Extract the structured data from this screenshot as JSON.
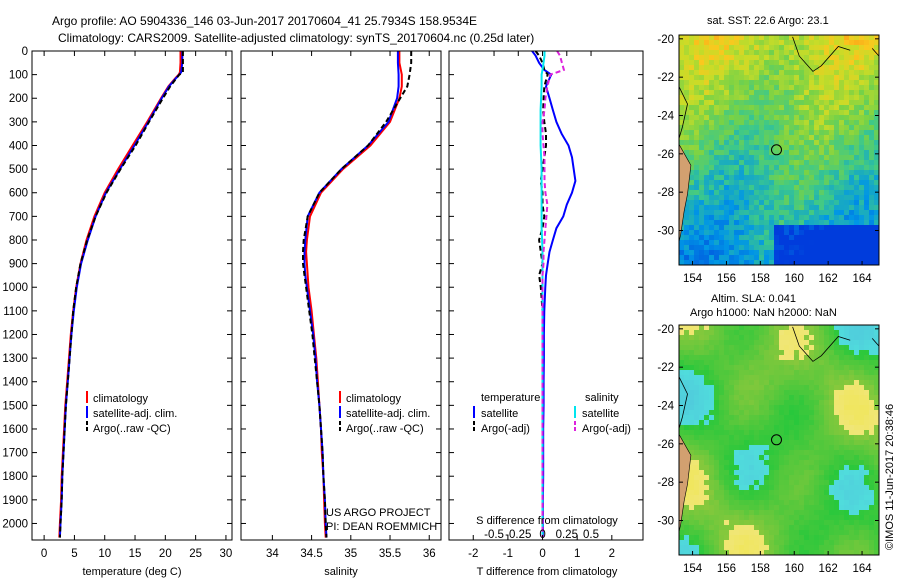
{
  "title": {
    "line1": "Argo profile: AO 5904336_146 03-Jun-2017 20170604_41 25.7934S 158.9534E",
    "line2": "Climatology: CARS2009. Satellite-adjusted climatology: synTS_20170604.nc (0.25d later)"
  },
  "colors": {
    "climatology": "#ff0000",
    "satellite": "#0000ff",
    "argo": "#000000",
    "sat_sal": "#00e5ee",
    "argo_sal": "#dd22dd"
  },
  "chart_data": [
    {
      "type": "line",
      "id": "temperature",
      "xlabel": "temperature (deg C)",
      "ylabel": "",
      "xlim": [
        -2,
        31
      ],
      "ylim": [
        2070,
        0
      ],
      "xticks": [
        0,
        5,
        10,
        15,
        20,
        25,
        30
      ],
      "yticks": [
        0,
        100,
        200,
        300,
        400,
        500,
        600,
        700,
        800,
        900,
        1000,
        1100,
        1200,
        1300,
        1400,
        1500,
        1600,
        1700,
        1800,
        1900,
        2000
      ],
      "depth": [
        0,
        20,
        50,
        90,
        100,
        120,
        150,
        200,
        300,
        400,
        500,
        600,
        700,
        800,
        900,
        1000,
        1100,
        1200,
        1300,
        1400,
        1500,
        1600,
        1700,
        1800,
        1900,
        2000,
        2060
      ],
      "series": [
        {
          "name": "climatology",
          "color": "#ff0000",
          "values": [
            22.5,
            22.5,
            22.5,
            22.4,
            22.2,
            21.5,
            20.5,
            19.3,
            17.0,
            14.6,
            12.2,
            10.0,
            8.3,
            7.0,
            6.0,
            5.3,
            4.8,
            4.4,
            4.1,
            3.8,
            3.5,
            3.3,
            3.1,
            2.9,
            2.8,
            2.6,
            2.5
          ]
        },
        {
          "name": "satellite-adj. clim.",
          "color": "#0000ff",
          "values": [
            22.8,
            22.8,
            22.8,
            22.6,
            22.3,
            21.6,
            20.6,
            19.4,
            17.2,
            14.9,
            12.5,
            10.2,
            8.5,
            7.2,
            6.1,
            5.4,
            4.9,
            4.5,
            4.2,
            3.9,
            3.6,
            3.4,
            3.2,
            3.0,
            2.9,
            2.7,
            2.6
          ]
        },
        {
          "name": "Argo(..raw -QC)",
          "color": "#000000",
          "values": [
            22.9,
            22.9,
            22.9,
            22.9,
            22.3,
            21.7,
            20.8,
            19.6,
            17.3,
            15.1,
            12.6,
            10.3,
            8.5,
            7.1,
            6.0,
            5.3,
            4.8,
            4.5,
            4.2,
            3.9,
            3.6,
            3.4,
            3.2,
            3.0,
            2.9,
            2.7,
            2.6
          ]
        }
      ],
      "legend": [
        "climatology",
        "satellite-adj. clim.",
        "Argo(..raw -QC)"
      ]
    },
    {
      "type": "line",
      "id": "salinity",
      "xlabel": "salinity",
      "ylabel": "",
      "xlim": [
        33.6,
        36.15
      ],
      "ylim": [
        2070,
        0
      ],
      "xticks": [
        34,
        34.5,
        35,
        35.5,
        36
      ],
      "depth": [
        0,
        20,
        50,
        100,
        150,
        200,
        300,
        400,
        500,
        600,
        700,
        800,
        850,
        900,
        950,
        1000,
        1100,
        1200,
        1300,
        1400,
        1500,
        1600,
        1700,
        1800,
        1900,
        2000,
        2060
      ],
      "series": [
        {
          "name": "climatology",
          "color": "#ff0000",
          "values": [
            35.62,
            35.62,
            35.62,
            35.65,
            35.65,
            35.62,
            35.5,
            35.25,
            34.9,
            34.62,
            34.48,
            34.44,
            34.43,
            34.44,
            34.45,
            34.46,
            34.5,
            34.53,
            34.56,
            34.58,
            34.6,
            34.62,
            34.63,
            34.65,
            34.66,
            34.67,
            34.68
          ]
        },
        {
          "name": "satellite-adj. clim.",
          "color": "#0000ff",
          "values": [
            35.6,
            35.6,
            35.6,
            35.61,
            35.61,
            35.59,
            35.48,
            35.22,
            34.88,
            34.6,
            34.45,
            34.42,
            34.41,
            34.41,
            34.42,
            34.44,
            34.48,
            34.52,
            34.55,
            34.57,
            34.6,
            34.62,
            34.64,
            34.65,
            34.67,
            34.68,
            34.69
          ]
        },
        {
          "name": "Argo(..raw -QC)",
          "color": "#000000",
          "values": [
            35.77,
            35.77,
            35.77,
            35.75,
            35.72,
            35.63,
            35.45,
            35.22,
            34.88,
            34.6,
            34.45,
            34.4,
            34.39,
            34.39,
            34.41,
            34.43,
            34.47,
            34.51,
            34.54,
            34.57,
            34.6,
            34.62,
            34.64,
            34.65,
            34.67,
            34.68,
            34.69
          ]
        }
      ],
      "legend": [
        "climatology",
        "satellite-adj. clim.",
        "Argo(..raw -QC)"
      ],
      "note1": "US ARGO PROJECT",
      "note2": "PI: DEAN ROEMMICH"
    },
    {
      "type": "line",
      "id": "differences",
      "xlabel": "T difference from climatology",
      "xlabel2": "S difference from climatology",
      "xlim": [
        -2.7,
        2.9
      ],
      "ylim": [
        2070,
        0
      ],
      "xticks": [
        -2,
        -1,
        0,
        1,
        2
      ],
      "xtick_labels": [
        "-2",
        "-1",
        "0",
        "1",
        "2"
      ],
      "sticks": [
        -0.5,
        -0.25,
        0,
        0.25,
        0.5
      ],
      "stick_labels": [
        "-0.5",
        "-0.25",
        "0",
        "0.25",
        "0.5"
      ],
      "depth": [
        0,
        20,
        50,
        80,
        100,
        150,
        200,
        250,
        300,
        350,
        400,
        450,
        500,
        550,
        600,
        650,
        700,
        750,
        800,
        850,
        900,
        950,
        1000,
        1100,
        1200,
        1300,
        1400,
        1500,
        1600,
        1700,
        1800,
        1900,
        2000,
        2060
      ],
      "series": [
        {
          "name": "T satellite",
          "color": "#0000ff",
          "values": [
            -0.3,
            -0.2,
            -0.1,
            0.05,
            0.25,
            0.1,
            0.2,
            0.3,
            0.4,
            0.55,
            0.75,
            0.85,
            0.9,
            0.95,
            0.85,
            0.7,
            0.6,
            0.4,
            0.3,
            0.2,
            0.15,
            0.1,
            0.08,
            0.05,
            0.04,
            0.04,
            0.03,
            0.03,
            0.02,
            0.02,
            0.02,
            0.01,
            0.01,
            0.01
          ]
        },
        {
          "name": "T Argo(-adj)",
          "color": "#000000",
          "values": [
            -0.2,
            -0.1,
            0.0,
            0.05,
            0.15,
            0.05,
            0.03,
            0.02,
            0.05,
            0.1,
            0.1,
            0.05,
            0.0,
            -0.05,
            0.0,
            0.0,
            0.05,
            0.0,
            -0.1,
            -0.05,
            0.0,
            -0.1,
            -0.05,
            0.0,
            0.0,
            0.0,
            0.0,
            0.0,
            0.0,
            0.0,
            0.0,
            0.0,
            0.0,
            0.0
          ]
        },
        {
          "name": "S satellite",
          "color": "#00e5ee",
          "values": [
            0.02,
            0.02,
            0.01,
            0.0,
            -0.01,
            -0.01,
            -0.015,
            -0.02,
            -0.02,
            -0.02,
            -0.02,
            -0.015,
            -0.01,
            -0.01,
            -0.01,
            -0.01,
            -0.01,
            -0.01,
            -0.005,
            0.0,
            0.0,
            0.0,
            0.0,
            0.0,
            0.0,
            0.0,
            0.0,
            0.0,
            0.0,
            0.0,
            0.0,
            0.0,
            0.0,
            0.0
          ]
        },
        {
          "name": "S Argo(-adj)",
          "color": "#dd22dd",
          "values": [
            0.15,
            0.18,
            0.2,
            0.22,
            0.08,
            0.05,
            0.03,
            0.02,
            0.0,
            0.0,
            0.01,
            0.02,
            0.02,
            0.02,
            0.03,
            0.05,
            0.04,
            0.03,
            0.02,
            0.01,
            0.01,
            0.0,
            0.0,
            0.0,
            0.0,
            0.0,
            0.0,
            0.0,
            0.0,
            0.0,
            0.0,
            0.0,
            0.0,
            0.0
          ]
        }
      ],
      "legend_t_title": "temperature",
      "legend_s_title": "salinity",
      "legend": [
        "satellite",
        "Argo(-adj)",
        "satellite",
        "Argo(-adj)"
      ]
    },
    {
      "type": "heatmap",
      "id": "sst_map",
      "title": "sat. SST: 22.6 Argo: 23.1",
      "xlim": [
        153.2,
        165
      ],
      "ylim": [
        -31.8,
        -19.8
      ],
      "xticks": [
        154,
        156,
        158,
        160,
        162,
        164
      ],
      "yticks": [
        -20,
        -22,
        -24,
        -26,
        -28,
        -30
      ],
      "marker": {
        "lon": 158.95,
        "lat": -25.79
      }
    },
    {
      "type": "heatmap",
      "id": "sla_map",
      "title1": "Altim. SLA: 0.041",
      "title2": "Argo h1000: NaN h2000: NaN",
      "xlim": [
        153.2,
        165
      ],
      "ylim": [
        -31.8,
        -19.8
      ],
      "xticks": [
        154,
        156,
        158,
        160,
        162,
        164
      ],
      "yticks": [
        -20,
        -22,
        -24,
        -26,
        -28,
        -30
      ],
      "marker": {
        "lon": 158.95,
        "lat": -25.79
      }
    }
  ],
  "footer": "©IMOS 11-Jun-2017 20:38:46"
}
